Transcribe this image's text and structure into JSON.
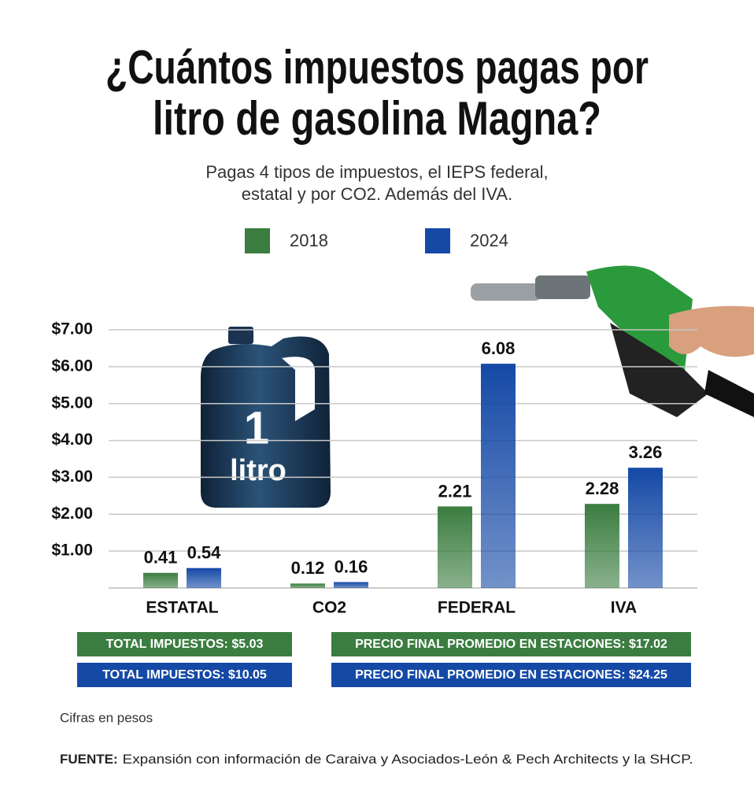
{
  "chart_data": {
    "type": "bar",
    "title_lines": [
      "¿Cuántos impuestos pagas por",
      "litro de gasolina Magna?"
    ],
    "subtitle_lines": [
      "Pagas 4 tipos de impuestos, el IEPS federal,",
      "estatal y por CO2. Además del IVA."
    ],
    "categories": [
      "ESTATAL",
      "CO2",
      "FEDERAL",
      "IVA"
    ],
    "series": [
      {
        "name": "2018",
        "color": "#3b7d40",
        "values": [
          0.41,
          0.12,
          2.21,
          2.28
        ]
      },
      {
        "name": "2024",
        "color": "#1549a6",
        "values": [
          0.54,
          0.16,
          6.08,
          3.26
        ]
      }
    ],
    "ylim": [
      0,
      7
    ],
    "yticks": [
      {
        "value": 1,
        "label": "$1.00"
      },
      {
        "value": 2,
        "label": "$2.00"
      },
      {
        "value": 3,
        "label": "$3.00"
      },
      {
        "value": 4,
        "label": "$4.00"
      },
      {
        "value": 5,
        "label": "$5.00"
      },
      {
        "value": 6,
        "label": "$6.00"
      },
      {
        "value": 7,
        "label": "$7.00"
      }
    ],
    "grid": true,
    "jug_label": [
      "1",
      "litro"
    ],
    "summary_boxes": [
      [
        "TOTAL IMPUESTOS: $5.03",
        "PRECIO FINAL PROMEDIO EN ESTACIONES: $17.02"
      ],
      [
        "TOTAL IMPUESTOS: $10.05",
        "PRECIO FINAL PROMEDIO EN ESTACIONES: $24.25"
      ]
    ],
    "note": "Cifras en pesos",
    "source_label": "FUENTE:",
    "source": "Expansión con información de Caraiva y Asociados-León & Pech Architects y la  SHCP."
  }
}
